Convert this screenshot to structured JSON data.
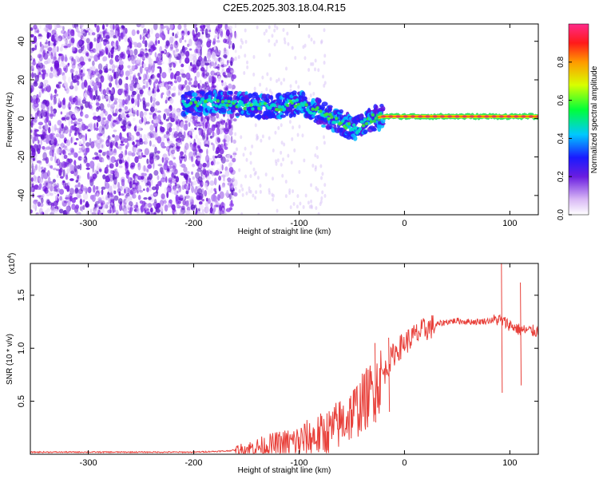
{
  "title": "C2E5.2025.303.18.04.R15",
  "chart_data": [
    {
      "type": "heatmap",
      "name": "spectrogram",
      "xlabel": "Height of straight line (km)",
      "ylabel": "Frequency (Hz)",
      "xlim": [
        -355,
        127
      ],
      "ylim": [
        -50,
        49
      ],
      "xticks": [
        -300,
        -200,
        -100,
        0,
        100
      ],
      "yticks": [
        -40,
        -20,
        0,
        20,
        40
      ],
      "colorbar": {
        "label": "Normalized spectral amplitude",
        "range": [
          0.0,
          1.0
        ],
        "ticks": [
          "0.0",
          "0.2",
          "0.4",
          "0.6",
          "0.8"
        ],
        "tick_values": [
          0.0,
          0.2,
          0.4,
          0.6,
          0.8
        ]
      },
      "ridge": {
        "description": "dominant frequency track",
        "x": [
          -210,
          -180,
          -150,
          -120,
          -100,
          -90,
          -80,
          -70,
          -60,
          -50,
          -45,
          -40,
          -30,
          -20,
          -10,
          0,
          20,
          50,
          80,
          100,
          127
        ],
        "y": [
          8,
          8,
          7,
          6,
          8,
          5,
          3,
          0,
          -2,
          -5,
          -6,
          -3,
          0,
          1,
          1,
          1,
          1,
          1,
          1,
          1,
          1
        ]
      }
    },
    {
      "type": "line",
      "name": "snr",
      "xlabel": "Height of straight line (km)",
      "ylabel": "SNR (10 * v/v)",
      "scale_label": "(x10",
      "scale_exponent": "4",
      "xlim": [
        -355,
        127
      ],
      "ylim": [
        0,
        1.8
      ],
      "xticks": [
        -300,
        -200,
        -100,
        0,
        100
      ],
      "yticks": [
        0.5,
        1.0,
        1.5
      ],
      "series": [
        {
          "name": "SNR",
          "color": "#e8403a",
          "x": [
            -355,
            -300,
            -250,
            -200,
            -170,
            -150,
            -130,
            -110,
            -100,
            -90,
            -80,
            -70,
            -60,
            -50,
            -40,
            -30,
            -20,
            -15,
            -10,
            0,
            10,
            20,
            30,
            40,
            50,
            60,
            70,
            80,
            90,
            100,
            110,
            127
          ],
          "y": [
            0.02,
            0.02,
            0.02,
            0.02,
            0.03,
            0.05,
            0.08,
            0.1,
            0.12,
            0.15,
            0.18,
            0.22,
            0.3,
            0.38,
            0.48,
            0.6,
            0.75,
            0.85,
            0.95,
            1.05,
            1.12,
            1.18,
            1.22,
            1.25,
            1.26,
            1.25,
            1.25,
            1.26,
            1.27,
            1.22,
            1.17,
            1.16
          ]
        }
      ]
    }
  ],
  "colors": {
    "frame": "#000000",
    "snr_line": "#e8403a",
    "ridge_core": "#e83a5a",
    "noise": "#7a22e0"
  }
}
